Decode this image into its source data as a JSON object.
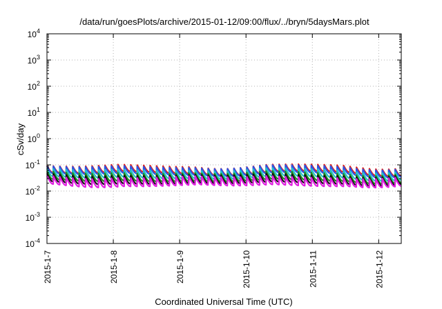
{
  "chart_data": {
    "type": "line",
    "title": "/data/run/goesPlots/archive/2015-01-12/09:00/flux/../bryn/5daysMars.plot",
    "xlabel": "Coordinated Universal Time (UTC)",
    "ylabel": "cSv/day",
    "yscale": "log",
    "ylim_exponents": [
      -4,
      4
    ],
    "y_tick_base": "10",
    "y_tick_exponents": [
      "-4",
      "-3",
      "-2",
      "-1",
      "0",
      "1",
      "2",
      "3",
      "4"
    ],
    "x_tick_labels": [
      "2015-1-7",
      "2015-1-8",
      "2015-1-9",
      "2015-1-10",
      "2015-1-11",
      "2015-1-12"
    ],
    "xlim_days": [
      0,
      5.34
    ],
    "grid": true,
    "cycle_days": 0.0972,
    "series": [
      {
        "color": "#e0201c",
        "peak": 0.095,
        "trough": 0.052
      },
      {
        "color": "#2a55e6",
        "peak": 0.088,
        "trough": 0.046
      },
      {
        "color": "#22c2c8",
        "peak": 0.068,
        "trough": 0.034
      },
      {
        "color": "#1e8a1e",
        "peak": 0.052,
        "trough": 0.026
      },
      {
        "color": "#111111",
        "peak": 0.043,
        "trough": 0.021
      },
      {
        "color": "#e020e0",
        "peak": 0.036,
        "trough": 0.017
      }
    ]
  }
}
